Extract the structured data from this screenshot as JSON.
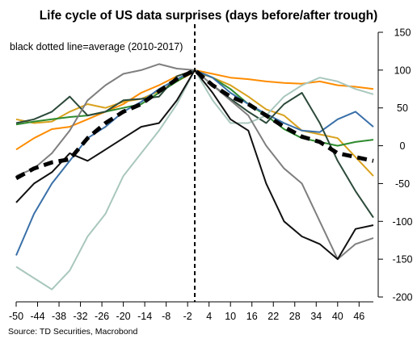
{
  "chart_data": {
    "type": "line",
    "title": "Life cycle of US data surprises (days before/after trough)",
    "annotation": "black dotted line=average (2010-2017)",
    "source": "Source: TD Securities, Macrobond",
    "x_tick_labels": [
      "-50",
      "-44",
      "-38",
      "-32",
      "-26",
      "-20",
      "-14",
      "-8",
      "-2",
      "4",
      "10",
      "16",
      "22",
      "28",
      "34",
      "40",
      "46"
    ],
    "y_tick_labels": [
      "150",
      "100",
      "50",
      "0",
      "-50",
      "-100",
      "-150",
      "-200"
    ],
    "x_ticks": [
      -50,
      -44,
      -38,
      -32,
      -26,
      -20,
      -14,
      -8,
      -2,
      4,
      10,
      16,
      22,
      28,
      34,
      40,
      46
    ],
    "y_ticks": [
      150,
      100,
      50,
      0,
      -50,
      -100,
      -150,
      -200
    ],
    "xlim": [
      -50,
      50
    ],
    "ylim": [
      -200,
      150
    ],
    "y_axis_side": "right",
    "vertical_reference_line_x": 0,
    "x": [
      -50,
      -45,
      -40,
      -35,
      -30,
      -25,
      -20,
      -15,
      -10,
      -5,
      0,
      5,
      10,
      15,
      20,
      25,
      30,
      35,
      40,
      45,
      50
    ],
    "series": [
      {
        "color": "#ff8c00",
        "style": "solid",
        "values": [
          -5,
          10,
          22,
          25,
          35,
          45,
          55,
          70,
          80,
          92,
          100,
          95,
          90,
          88,
          85,
          83,
          82,
          85,
          80,
          78,
          75
        ]
      },
      {
        "color": "#d9a21e",
        "style": "solid",
        "values": [
          35,
          30,
          32,
          45,
          55,
          50,
          58,
          62,
          72,
          85,
          98,
          90,
          80,
          65,
          48,
          40,
          20,
          15,
          10,
          -15,
          -40
        ]
      },
      {
        "color": "#2e8b2e",
        "style": "solid",
        "values": [
          28,
          32,
          35,
          38,
          40,
          45,
          50,
          55,
          70,
          85,
          100,
          90,
          75,
          55,
          40,
          22,
          10,
          5,
          0,
          5,
          8
        ]
      },
      {
        "color": "#3a70a8",
        "style": "solid",
        "values": [
          -145,
          -90,
          -50,
          -20,
          10,
          25,
          45,
          58,
          75,
          88,
          100,
          90,
          70,
          55,
          42,
          30,
          20,
          18,
          35,
          45,
          25
        ]
      },
      {
        "color": "#2c4a3a",
        "style": "solid",
        "values": [
          30,
          35,
          45,
          65,
          40,
          45,
          60,
          62,
          65,
          92,
          100,
          80,
          62,
          45,
          30,
          55,
          70,
          30,
          -20,
          -60,
          -95
        ]
      },
      {
        "color": "#a9c7bd",
        "style": "solid",
        "values": [
          -160,
          -175,
          -190,
          -165,
          -120,
          -90,
          -40,
          -10,
          20,
          55,
          100,
          60,
          30,
          30,
          40,
          65,
          80,
          90,
          85,
          75,
          68
        ]
      },
      {
        "color": "#7f7f7f",
        "style": "solid",
        "values": [
          -40,
          -30,
          -10,
          20,
          60,
          80,
          95,
          100,
          108,
          102,
          100,
          80,
          60,
          40,
          0,
          -30,
          -50,
          -100,
          -150,
          -130,
          -122
        ]
      },
      {
        "color": "#111111",
        "style": "solid",
        "values": [
          -75,
          -50,
          -35,
          -10,
          -20,
          -5,
          10,
          25,
          30,
          60,
          100,
          70,
          35,
          20,
          -50,
          -100,
          -120,
          -130,
          -150,
          -110,
          -105
        ]
      },
      {
        "color": "#000000",
        "style": "dashed",
        "name": "average (2010-2017)",
        "values": [
          -43,
          -30,
          -22,
          -18,
          10,
          30,
          45,
          55,
          72,
          88,
          100,
          80,
          65,
          55,
          40,
          25,
          12,
          5,
          -10,
          -15,
          -20
        ]
      }
    ]
  }
}
